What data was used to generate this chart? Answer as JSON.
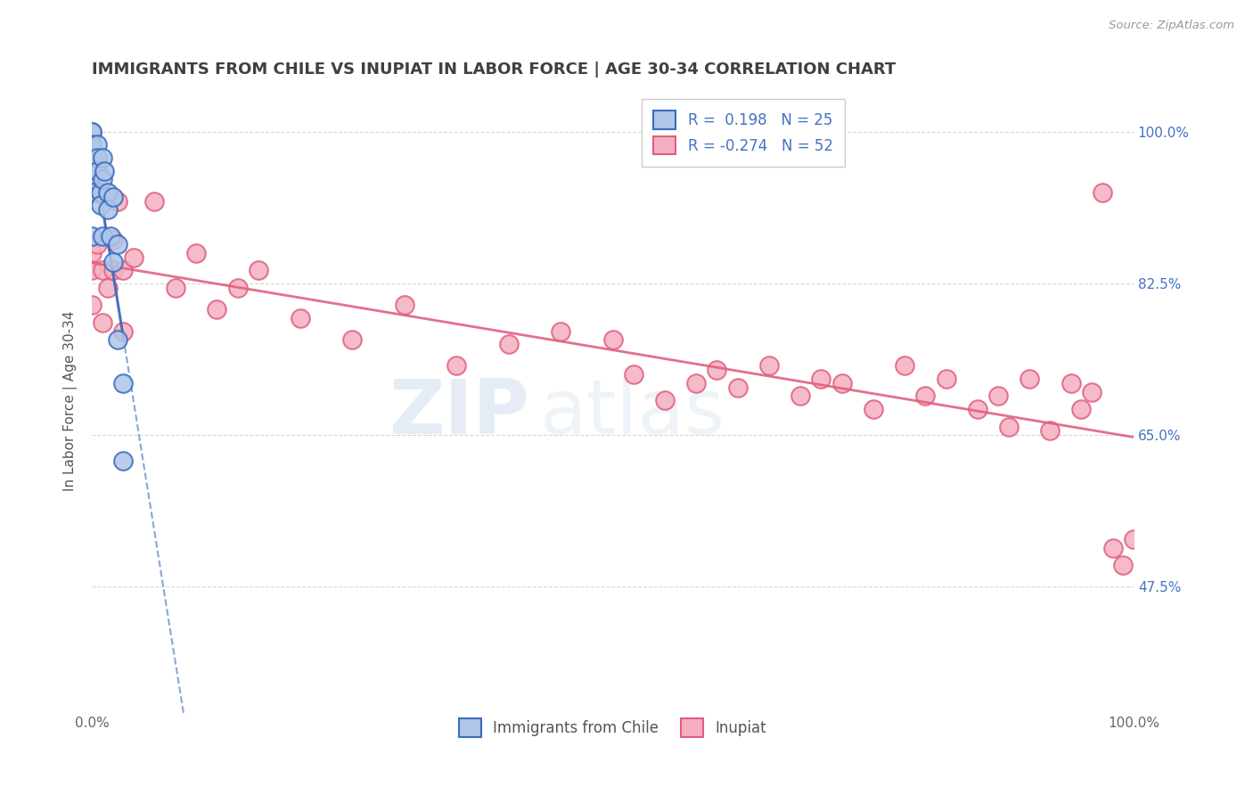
{
  "title": "IMMIGRANTS FROM CHILE VS INUPIAT IN LABOR FORCE | AGE 30-34 CORRELATION CHART",
  "source_text": "Source: ZipAtlas.com",
  "ylabel": "In Labor Force | Age 30-34",
  "xmin": 0.0,
  "xmax": 1.0,
  "ymin": 0.33,
  "ymax": 1.05,
  "ytick_values": [
    0.475,
    0.65,
    0.825,
    1.0
  ],
  "r_chile": 0.198,
  "n_chile": 25,
  "r_inupiat": -0.274,
  "n_inupiat": 52,
  "chile_color": "#aec6e8",
  "inupiat_color": "#f5afc0",
  "chile_line_color": "#3a6bbf",
  "inupiat_line_color": "#e06080",
  "watermark_zip": "ZIP",
  "watermark_atlas": "atlas",
  "background_color": "#ffffff",
  "grid_color": "#cccccc",
  "title_color": "#404040",
  "axis_label_color": "#555555",
  "tick_color_right": "#4472c4",
  "legend_text_color": "#4472c4",
  "chile_scatter_x": [
    0.0,
    0.0,
    0.0,
    0.0,
    0.0,
    0.0,
    0.0,
    0.005,
    0.005,
    0.005,
    0.008,
    0.008,
    0.01,
    0.01,
    0.01,
    0.012,
    0.015,
    0.015,
    0.018,
    0.02,
    0.02,
    0.025,
    0.025,
    0.03,
    0.03
  ],
  "chile_scatter_y": [
    1.0,
    1.0,
    0.985,
    0.97,
    0.95,
    0.93,
    0.88,
    0.985,
    0.97,
    0.955,
    0.93,
    0.915,
    0.97,
    0.945,
    0.88,
    0.955,
    0.93,
    0.91,
    0.88,
    0.925,
    0.85,
    0.87,
    0.76,
    0.71,
    0.62
  ],
  "inupiat_scatter_x": [
    0.0,
    0.0,
    0.0,
    0.005,
    0.005,
    0.01,
    0.01,
    0.015,
    0.02,
    0.02,
    0.025,
    0.03,
    0.03,
    0.04,
    0.06,
    0.08,
    0.1,
    0.12,
    0.14,
    0.16,
    0.2,
    0.25,
    0.3,
    0.35,
    0.4,
    0.45,
    0.5,
    0.52,
    0.55,
    0.58,
    0.6,
    0.62,
    0.65,
    0.68,
    0.7,
    0.72,
    0.75,
    0.78,
    0.8,
    0.82,
    0.85,
    0.87,
    0.88,
    0.9,
    0.92,
    0.94,
    0.95,
    0.96,
    0.97,
    0.98,
    0.99,
    1.0
  ],
  "inupiat_scatter_y": [
    0.86,
    0.84,
    0.8,
    0.93,
    0.87,
    0.84,
    0.78,
    0.82,
    0.875,
    0.84,
    0.92,
    0.84,
    0.77,
    0.855,
    0.92,
    0.82,
    0.86,
    0.795,
    0.82,
    0.84,
    0.785,
    0.76,
    0.8,
    0.73,
    0.755,
    0.77,
    0.76,
    0.72,
    0.69,
    0.71,
    0.725,
    0.705,
    0.73,
    0.695,
    0.715,
    0.71,
    0.68,
    0.73,
    0.695,
    0.715,
    0.68,
    0.695,
    0.66,
    0.715,
    0.655,
    0.71,
    0.68,
    0.7,
    0.93,
    0.52,
    0.5,
    0.53
  ]
}
